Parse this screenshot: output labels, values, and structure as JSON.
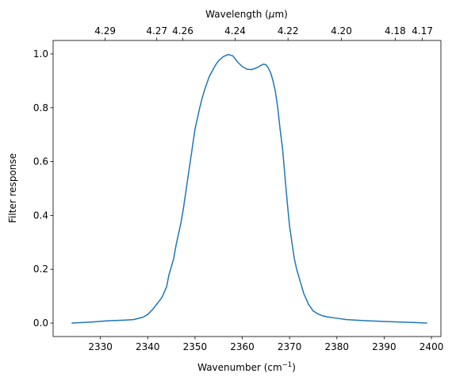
{
  "chart_data": {
    "type": "line",
    "xlabel_main": "Wavenumber (cm",
    "xlabel_sup": "−1",
    "xlabel_tail": ")",
    "ylabel": "Filter response",
    "top_xlabel_main": "Wavelength (",
    "top_xlabel_mu": "μ",
    "top_xlabel_tail": "m)",
    "xlim": [
      2320,
      2402
    ],
    "ylim": [
      -0.05,
      1.05
    ],
    "x_ticks": [
      2330,
      2340,
      2350,
      2360,
      2370,
      2380,
      2390,
      2400
    ],
    "x_tick_labels": [
      "2330",
      "2340",
      "2350",
      "2360",
      "2370",
      "2380",
      "2390",
      "2400"
    ],
    "y_ticks": [
      0.0,
      0.2,
      0.4,
      0.6,
      0.8,
      1.0
    ],
    "y_tick_labels": [
      "0.0",
      "0.2",
      "0.4",
      "0.6",
      "0.8",
      "1.0"
    ],
    "top_ticks_wavelength_um": [
      4.29,
      4.27,
      4.26,
      4.24,
      4.22,
      4.2,
      4.18,
      4.17
    ],
    "top_tick_labels": [
      "4.29",
      "4.27",
      "4.26",
      "4.24",
      "4.22",
      "4.20",
      "4.18",
      "4.17"
    ],
    "grid": false,
    "series": [
      {
        "color": "#1f77b4",
        "x": [
          2324,
          2328,
          2332,
          2335,
          2337,
          2339,
          2340,
          2341,
          2342,
          2343,
          2343.5,
          2344,
          2344.5,
          2345,
          2345.5,
          2346,
          2346.5,
          2347,
          2347.5,
          2348,
          2348.5,
          2349,
          2349.5,
          2350,
          2350.5,
          2351,
          2351.5,
          2352,
          2352.5,
          2353,
          2353.5,
          2354,
          2354.5,
          2355,
          2356,
          2357,
          2358,
          2359,
          2360,
          2361,
          2362,
          2363,
          2364,
          2364.5,
          2365,
          2365.5,
          2366,
          2366.5,
          2367,
          2367.5,
          2368,
          2368.5,
          2369,
          2369.5,
          2370,
          2370.5,
          2371,
          2371.5,
          2372,
          2373,
          2374,
          2375,
          2376,
          2377,
          2378,
          2380,
          2382,
          2386,
          2390,
          2395,
          2399
        ],
        "y": [
          0.0,
          0.004,
          0.009,
          0.011,
          0.013,
          0.022,
          0.032,
          0.05,
          0.072,
          0.095,
          0.115,
          0.135,
          0.18,
          0.21,
          0.24,
          0.29,
          0.33,
          0.37,
          0.42,
          0.48,
          0.54,
          0.6,
          0.66,
          0.72,
          0.76,
          0.8,
          0.835,
          0.865,
          0.89,
          0.915,
          0.932,
          0.948,
          0.963,
          0.975,
          0.99,
          0.998,
          0.993,
          0.97,
          0.953,
          0.943,
          0.942,
          0.948,
          0.958,
          0.962,
          0.96,
          0.948,
          0.93,
          0.9,
          0.86,
          0.8,
          0.72,
          0.65,
          0.55,
          0.45,
          0.36,
          0.3,
          0.24,
          0.2,
          0.17,
          0.11,
          0.07,
          0.045,
          0.034,
          0.027,
          0.023,
          0.018,
          0.013,
          0.009,
          0.006,
          0.003,
          0.0
        ]
      }
    ]
  }
}
